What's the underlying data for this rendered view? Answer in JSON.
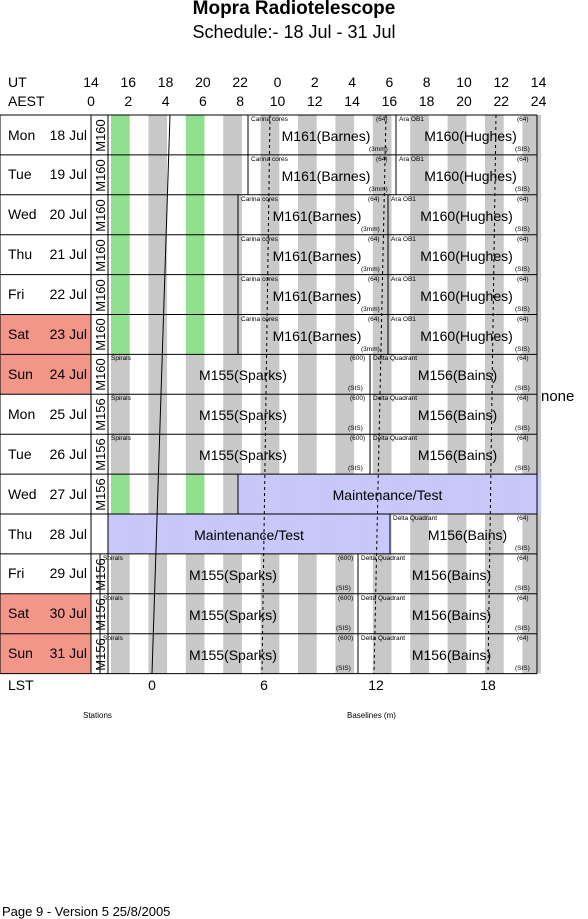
{
  "title": "Mopra Radiotelescope",
  "subtitle": "Schedule:- 18 Jul - 31 Jul",
  "ut_label": "UT",
  "aest_label": "AEST",
  "ut_ticks": [
    "14",
    "16",
    "18",
    "20",
    "22",
    "0",
    "2",
    "4",
    "6",
    "8",
    "10",
    "12",
    "14"
  ],
  "aest_ticks": [
    "0",
    "2",
    "4",
    "6",
    "8",
    "10",
    "12",
    "14",
    "16",
    "18",
    "20",
    "22",
    "24"
  ],
  "lst_label": "LST",
  "lst_ticks": [
    "0",
    "6",
    "12",
    "18"
  ],
  "stations_label": "Stations",
  "baselines_label": "Baselines (m)",
  "side_note": "none",
  "footer": "Page 9 - Version 5  25/8/2005",
  "colors": {
    "weekend": "#f2968a",
    "station": "#90e090",
    "maintenance": "#c8c8f8",
    "grey_band": "#c8c8c8"
  },
  "days": [
    {
      "name": "Mon",
      "date": "18 Jul",
      "weekend": false
    },
    {
      "name": "Tue",
      "date": "19 Jul",
      "weekend": false
    },
    {
      "name": "Wed",
      "date": "20 Jul",
      "weekend": false
    },
    {
      "name": "Thu",
      "date": "21 Jul",
      "weekend": false
    },
    {
      "name": "Fri",
      "date": "22 Jul",
      "weekend": false
    },
    {
      "name": "Sat",
      "date": "23 Jul",
      "weekend": true
    },
    {
      "name": "Sun",
      "date": "24 Jul",
      "weekend": true
    },
    {
      "name": "Mon",
      "date": "25 Jul",
      "weekend": false
    },
    {
      "name": "Tue",
      "date": "26 Jul",
      "weekend": false
    },
    {
      "name": "Wed",
      "date": "27 Jul",
      "weekend": false
    },
    {
      "name": "Thu",
      "date": "28 Jul",
      "weekend": false
    },
    {
      "name": "Fri",
      "date": "29 Jul",
      "weekend": false
    },
    {
      "name": "Sat",
      "date": "30 Jul",
      "weekend": true
    },
    {
      "name": "Sun",
      "date": "31 Jul",
      "weekend": true
    }
  ],
  "rows": [
    {
      "station": "M160",
      "blocks": [
        {
          "label": "M161(Barnes)",
          "source": "Carina cores",
          "band": "(3mm)",
          "count": "(64)"
        },
        {
          "label": "M160(Hughes)",
          "source": "Ara OB1",
          "band": "(SIS)",
          "count": "(64)"
        }
      ]
    },
    {
      "station": "M160",
      "blocks": [
        {
          "label": "M161(Barnes)",
          "source": "Carina cores",
          "band": "(3mm)",
          "count": "(64)"
        },
        {
          "label": "M160(Hughes)",
          "source": "Ara OB1",
          "band": "(SIS)",
          "count": "(64)"
        }
      ]
    },
    {
      "station": "M160",
      "blocks": [
        {
          "label": "M161(Barnes)",
          "source": "Carina cores",
          "band": "(3mm)",
          "count": "(64)"
        },
        {
          "label": "M160(Hughes)",
          "source": "Ara OB1",
          "band": "(SIS)",
          "count": "(64)"
        }
      ]
    },
    {
      "station": "M160",
      "blocks": [
        {
          "label": "M161(Barnes)",
          "source": "Carina cores",
          "band": "(3mm)",
          "count": "(64)"
        },
        {
          "label": "M160(Hughes)",
          "source": "Ara OB1",
          "band": "(SIS)",
          "count": "(64)"
        }
      ]
    },
    {
      "station": "M160",
      "blocks": [
        {
          "label": "M161(Barnes)",
          "source": "Carina cores",
          "band": "(3mm)",
          "count": "(64)"
        },
        {
          "label": "M160(Hughes)",
          "source": "Ara OB1",
          "band": "(SIS)",
          "count": "(64)"
        }
      ]
    },
    {
      "station": "M160",
      "blocks": [
        {
          "label": "M161(Barnes)",
          "source": "Carina cores",
          "band": "(3mm)",
          "count": "(64)"
        },
        {
          "label": "M160(Hughes)",
          "source": "Ara OB1",
          "band": "(SIS)",
          "count": "(64)"
        }
      ]
    },
    {
      "station": "M160",
      "blocks": [
        {
          "label": "M155(Sparks)",
          "source": "Spirals",
          "band": "(SIS)",
          "count": "(600)"
        },
        {
          "label": "M156(Bains)",
          "source": "Delta Quadrant",
          "band": "(SIS)",
          "count": "(64)"
        }
      ]
    },
    {
      "station": "M156",
      "blocks": [
        {
          "label": "M155(Sparks)",
          "source": "Spirals",
          "band": "(SIS)",
          "count": "(600)"
        },
        {
          "label": "M156(Bains)",
          "source": "Delta Quadrant",
          "band": "(SIS)",
          "count": "(64)"
        }
      ]
    },
    {
      "station": "M156",
      "blocks": [
        {
          "label": "M155(Sparks)",
          "source": "Spirals",
          "band": "(SIS)",
          "count": "(600)"
        },
        {
          "label": "M156(Bains)",
          "source": "Delta Quadrant",
          "band": "(SIS)",
          "count": "(64)"
        }
      ]
    },
    {
      "station": "M156",
      "blocks": [
        {
          "label": "Maintenance/Test",
          "source": "",
          "band": "",
          "count": ""
        }
      ]
    },
    {
      "station": "",
      "blocks": [
        {
          "label": "Maintenance/Test",
          "source": "",
          "band": "",
          "count": ""
        },
        {
          "label": "M156(Bains)",
          "source": "Delta Quadrant",
          "band": "(SIS)",
          "count": "(64)"
        }
      ]
    },
    {
      "station": "M156",
      "blocks": [
        {
          "label": "M155(Sparks)",
          "source": "Spirals",
          "band": "(SIS)",
          "count": "(600)"
        },
        {
          "label": "M156(Bains)",
          "source": "Delta Quadrant",
          "band": "(SIS)",
          "count": "(64)"
        }
      ]
    },
    {
      "station": "M156",
      "blocks": [
        {
          "label": "M155(Sparks)",
          "source": "Spirals",
          "band": "(SIS)",
          "count": "(600)"
        },
        {
          "label": "M156(Bains)",
          "source": "Delta Quadrant",
          "band": "(SIS)",
          "count": "(64)"
        }
      ]
    },
    {
      "station": "M156",
      "blocks": [
        {
          "label": "M155(Sparks)",
          "source": "Spirals",
          "band": "(SIS)",
          "count": "(600)"
        },
        {
          "label": "M156(Bains)",
          "source": "Delta Quadrant",
          "band": "(SIS)",
          "count": "(64)"
        }
      ]
    }
  ]
}
